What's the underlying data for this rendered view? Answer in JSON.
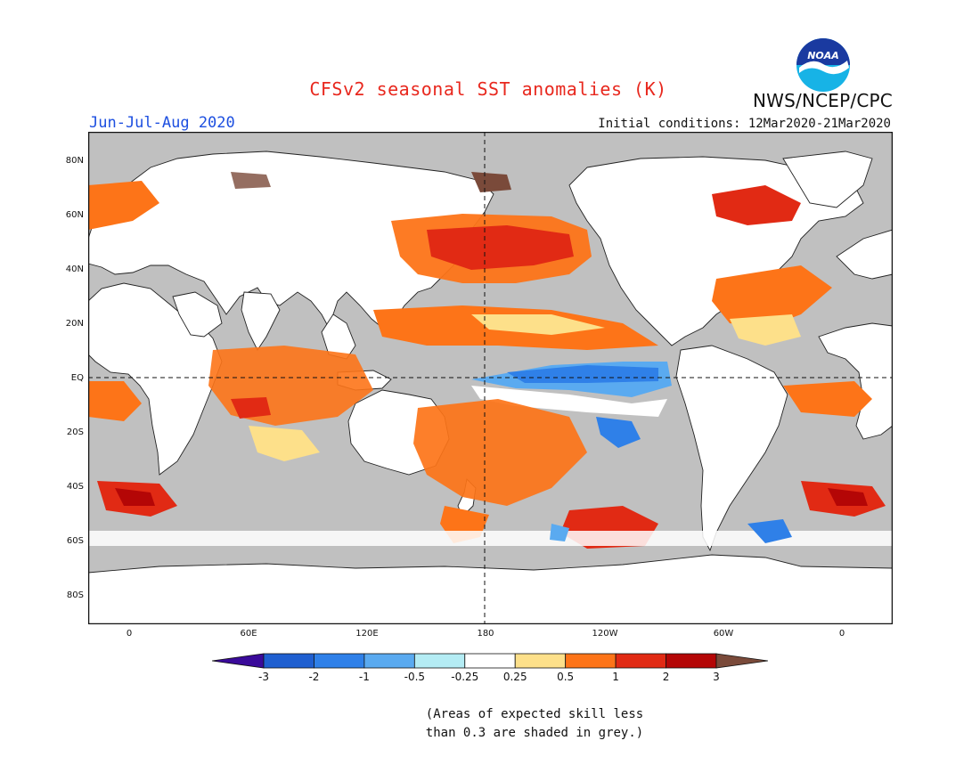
{
  "title": "CFSv2 seasonal SST anomalies (K)",
  "period": "Jun-Jul-Aug 2020",
  "initial_conditions": "Initial conditions: 12Mar2020-21Mar2020",
  "organization": "NWS/NCEP/CPC",
  "logo_text": "NOAA",
  "lat_labels": [
    "80N",
    "60N",
    "40N",
    "20N",
    "EQ",
    "20S",
    "40S",
    "60S",
    "80S"
  ],
  "lon_labels": [
    "0",
    "60E",
    "120E",
    "180",
    "120W",
    "60W",
    "0"
  ],
  "colorbar": {
    "ticks": [
      "-3",
      "-2",
      "-1",
      "-0.5",
      "-0.25",
      "0.25",
      "0.5",
      "1",
      "2",
      "3"
    ],
    "colors": [
      "#3a0a9a",
      "#1f5fd0",
      "#2f80e8",
      "#5aaaf0",
      "#b4ecf4",
      "#ffffff",
      "#fde08a",
      "#fd7418",
      "#e12a14",
      "#b40606",
      "#7a4a3a"
    ]
  },
  "colors": {
    "land": "#ffffff",
    "low_skill_grey": "#c0c0c0",
    "title_red": "#e8281e",
    "period_blue": "#1d4fe0"
  },
  "note_lines": [
    "(Areas of expected skill less",
    "than 0.3 are shaded in grey.)"
  ]
}
